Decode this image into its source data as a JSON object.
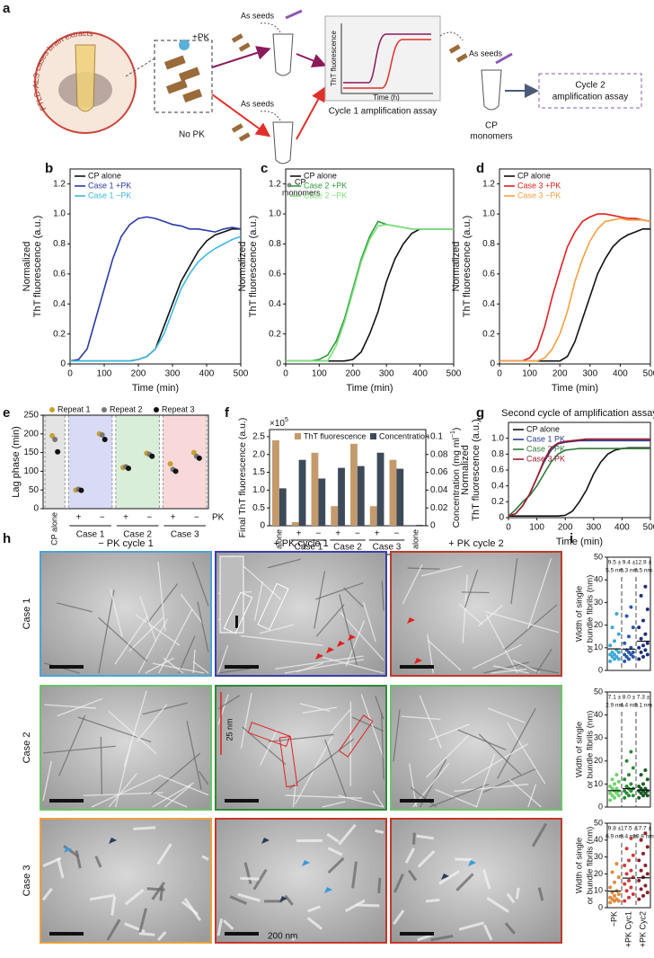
{
  "figure": {
    "panel_labels": [
      "a",
      "b",
      "c",
      "d",
      "e",
      "f",
      "g",
      "h",
      "i"
    ],
    "schematic": {
      "circle_label": "FTLD-ALS cases brain extracts",
      "plus_pk": "+PK",
      "no_pk": "No PK",
      "seeds": "As seeds",
      "cp": "CP",
      "monomers": "monomers",
      "assay_ylabel": "ThT fluorescence",
      "assay_xlabel": "Time (h)",
      "cycle1": "Cycle 1 amplification assay",
      "cycle2": [
        "Cycle 2",
        "amplification assay"
      ]
    },
    "micrographs": {
      "columns": [
        "− PK cycle 1",
        "+ PK cycle 1",
        "+ PK cycle 2"
      ],
      "rows": [
        "Case 1",
        "Case 2",
        "Case 3"
      ],
      "inset_scale": "25 nm",
      "scale": "200 nm"
    }
  },
  "chart_data": [
    {
      "type": "line",
      "xlabel": "Time (min)",
      "ylabel": [
        "Normalized",
        "ThT fluorescence (a.u.)"
      ],
      "legend": "upper left",
      "x": [
        0,
        25,
        50,
        75,
        100,
        125,
        150,
        175,
        200,
        225,
        250,
        275,
        300,
        325,
        350,
        375,
        400,
        425,
        450,
        475,
        500
      ],
      "xlim": [
        0,
        500
      ],
      "xticks": [
        0,
        100,
        200,
        300,
        400,
        500
      ],
      "ylim": [
        0,
        1.3
      ],
      "yticks": [
        0,
        0.2,
        0.4,
        0.6,
        0.8,
        {
          "value": 1,
          "label": "1.0"
        },
        1.2
      ],
      "series": [
        {
          "name": "CP alone",
          "color": "#111111",
          "values": [
            0.02,
            0.02,
            0.02,
            0.02,
            0.02,
            0.02,
            0.02,
            0.02,
            0.03,
            0.05,
            0.1,
            0.25,
            0.4,
            0.55,
            0.65,
            0.75,
            0.82,
            0.86,
            0.88,
            0.9,
            0.9
          ]
        },
        {
          "name": "Case 1 +PK",
          "color": "#2a3aa8",
          "values": [
            0.02,
            0.03,
            0.1,
            0.3,
            0.5,
            0.7,
            0.85,
            0.93,
            0.97,
            0.98,
            0.97,
            0.95,
            0.93,
            0.92,
            0.9,
            0.9,
            0.89,
            0.88,
            0.9,
            0.91,
            0.9
          ]
        },
        {
          "name": "Case 1 −PK",
          "color": "#3cb8e0",
          "values": [
            0.02,
            0.02,
            0.02,
            0.02,
            0.02,
            0.02,
            0.02,
            0.02,
            0.03,
            0.05,
            0.1,
            0.2,
            0.35,
            0.5,
            0.6,
            0.68,
            0.73,
            0.77,
            0.8,
            0.83,
            0.85
          ]
        }
      ]
    },
    {
      "type": "line",
      "xlabel": "Time (min)",
      "ylabel": [
        "Normalized",
        "ThT fluorescence (a.u.)"
      ],
      "legend": "upper left",
      "x": [
        0,
        25,
        50,
        75,
        100,
        125,
        150,
        175,
        200,
        225,
        250,
        275,
        300,
        325,
        350,
        375,
        400,
        425,
        450,
        475,
        500
      ],
      "xlim": [
        0,
        500
      ],
      "xticks": [
        0,
        100,
        200,
        300,
        400,
        500
      ],
      "ylim": [
        0,
        1.3
      ],
      "yticks": [
        0,
        0.2,
        0.4,
        0.6,
        0.8,
        {
          "value": 1,
          "label": "1.0"
        },
        1.2
      ],
      "series": [
        {
          "name": "CP alone",
          "color": "#111111",
          "values": [
            0.02,
            0.02,
            0.02,
            0.02,
            0.02,
            0.02,
            0.02,
            0.02,
            0.03,
            0.08,
            0.2,
            0.35,
            0.55,
            0.7,
            0.8,
            0.87,
            0.9,
            0.9,
            0.9,
            0.9,
            0.9
          ]
        },
        {
          "name": "Case 2 +PK",
          "color": "#2e9e3a",
          "values": [
            0.02,
            0.02,
            0.02,
            0.02,
            0.03,
            0.06,
            0.15,
            0.3,
            0.5,
            0.7,
            0.85,
            0.95,
            0.93,
            0.92,
            0.91,
            0.9,
            0.9,
            0.9,
            0.9,
            0.9,
            0.9
          ]
        },
        {
          "name": "Case 2 −PK",
          "color": "#7be07a",
          "values": [
            0.02,
            0.02,
            0.02,
            0.02,
            0.02,
            0.02,
            0.12,
            0.28,
            0.48,
            0.68,
            0.83,
            0.92,
            0.93,
            0.92,
            0.91,
            0.9,
            0.9,
            0.9,
            0.9,
            0.9,
            0.9
          ]
        }
      ]
    },
    {
      "type": "line",
      "xlabel": "Time (min)",
      "ylabel": [
        "Normalized",
        "ThT fluorescence (a.u.)"
      ],
      "legend": "upper left",
      "x": [
        0,
        25,
        50,
        75,
        100,
        125,
        150,
        175,
        200,
        225,
        250,
        275,
        300,
        325,
        350,
        375,
        400,
        425,
        450,
        475,
        500
      ],
      "xlim": [
        0,
        500
      ],
      "xticks": [
        0,
        100,
        200,
        300,
        400,
        500
      ],
      "ylim": [
        0,
        1.3
      ],
      "yticks": [
        0,
        0.2,
        0.4,
        0.6,
        0.8,
        {
          "value": 1,
          "label": "1.0"
        },
        1.2
      ],
      "series": [
        {
          "name": "CP alone",
          "color": "#111111",
          "values": [
            0.02,
            0.02,
            0.02,
            0.02,
            0.02,
            0.02,
            0.02,
            0.02,
            0.02,
            0.05,
            0.15,
            0.3,
            0.45,
            0.6,
            0.7,
            0.78,
            0.83,
            0.86,
            0.88,
            0.9,
            0.9
          ]
        },
        {
          "name": "Case 3 +PK",
          "color": "#e02020",
          "values": [
            0.02,
            0.02,
            0.02,
            0.02,
            0.04,
            0.1,
            0.25,
            0.45,
            0.62,
            0.78,
            0.88,
            0.95,
            0.98,
            1.0,
            1.0,
            0.99,
            0.98,
            0.97,
            0.97,
            0.96,
            0.95
          ]
        },
        {
          "name": "Case 3 −PK",
          "color": "#f5a040",
          "values": [
            0.02,
            0.02,
            0.02,
            0.02,
            0.02,
            0.02,
            0.04,
            0.1,
            0.2,
            0.35,
            0.55,
            0.7,
            0.82,
            0.9,
            0.95,
            0.96,
            0.97,
            0.96,
            0.96,
            0.96,
            0.95
          ]
        }
      ]
    },
    {
      "type": "dot",
      "ylabel": "Lag phase (min)",
      "legend": "top",
      "categories": [
        "CP alone",
        "+",
        "−",
        "+",
        "−",
        "+",
        "−"
      ],
      "group_labels": [
        "Case 1",
        "Case 2",
        "Case 3"
      ],
      "group_axis_label": "PK",
      "band_colors": [
        "#e4e4e4",
        "#d8daf6",
        "#d8eed8",
        "#f8d8d8"
      ],
      "ylim": [
        0,
        250
      ],
      "yticks": [
        0,
        50,
        100,
        150,
        200,
        250
      ],
      "series": [
        {
          "name": "Repeat 1",
          "color": "#c8a032",
          "values": [
            195,
            50,
            200,
            110,
            148,
            120,
            150
          ]
        },
        {
          "name": "Repeat 2",
          "color": "#777777",
          "values": [
            185,
            52,
            197,
            112,
            145,
            105,
            140
          ]
        },
        {
          "name": "Repeat 3",
          "color": "#111111",
          "values": [
            152,
            49,
            185,
            108,
            140,
            100,
            135
          ]
        }
      ]
    },
    {
      "type": "bar_dual",
      "ylabel": "Final ThT fluorescence (a.u.)",
      "y_multiplier": "×10",
      "y_multiplier_exp": "5",
      "y2label": "Concentration (mg ml",
      "y2label_exp": "−1",
      "y2label_end": ")",
      "legend": "top",
      "categories": [
        "CP alone",
        "+",
        "−",
        "+",
        "−",
        "+",
        "−",
        "ThT alone"
      ],
      "group_labels": [
        "Case 1",
        "Case 2",
        "Case 3"
      ],
      "group_axis_label": "PK",
      "ylim": [
        0,
        2.7
      ],
      "yticks": [
        0,
        0.5,
        {
          "value": 1,
          "label": "1.0"
        },
        1.5,
        {
          "value": 2,
          "label": "2.0"
        },
        2.5
      ],
      "y2lim": [
        0,
        0.108
      ],
      "y2ticks": [
        0,
        0.02,
        0.04,
        0.06,
        0.08,
        0.1
      ],
      "series": [
        {
          "name": "ThT fluorescence",
          "color": "#c49a6c",
          "values": [
            2.4,
            0.1,
            2.05,
            0.55,
            2.3,
            0.55,
            1.85,
            null
          ]
        },
        {
          "name": "Concentration",
          "color": "#3d4a5a",
          "axis": "y2",
          "values": [
            0.042,
            0.074,
            0.053,
            0.065,
            0.067,
            0.082,
            0.064,
            0.001
          ]
        }
      ]
    },
    {
      "type": "line",
      "title": "Second cycle of amplification assay",
      "xlabel": "Time (min)",
      "ylabel": [
        "Normalized",
        "ThT fluorescence (a.u.)"
      ],
      "legend": "upper left",
      "x": [
        0,
        25,
        50,
        75,
        100,
        125,
        150,
        175,
        200,
        225,
        250,
        275,
        300,
        325,
        350,
        375,
        400,
        425,
        450,
        475,
        500
      ],
      "xlim": [
        0,
        500
      ],
      "xticks": [
        0,
        100,
        200,
        300,
        400,
        500
      ],
      "ylim": [
        0,
        1.2
      ],
      "yticks": [
        0,
        0.2,
        0.4,
        0.6,
        0.8,
        {
          "value": 1,
          "label": "1.0"
        }
      ],
      "series": [
        {
          "name": "CP alone",
          "color": "#111111",
          "values": [
            0.02,
            0.02,
            0.02,
            0.02,
            0.02,
            0.02,
            0.02,
            0.02,
            0.03,
            0.08,
            0.2,
            0.35,
            0.55,
            0.7,
            0.8,
            0.85,
            0.87,
            0.88,
            0.88,
            0.88,
            0.88
          ]
        },
        {
          "name": "Case 1 PK",
          "color": "#2a3a8a",
          "values": [
            0.02,
            0.05,
            0.15,
            0.3,
            0.5,
            0.7,
            0.85,
            0.93,
            0.95,
            0.96,
            0.97,
            0.97,
            0.97,
            0.97,
            0.97,
            0.97,
            0.97,
            0.97,
            0.97,
            0.97,
            0.97
          ]
        },
        {
          "name": "Case 2 PK",
          "color": "#2e7a3a",
          "values": [
            0.02,
            0.1,
            0.2,
            0.28,
            0.4,
            0.55,
            0.7,
            0.8,
            0.85,
            0.86,
            0.87,
            0.87,
            0.87,
            0.87,
            0.87,
            0.87,
            0.87,
            0.87,
            0.87,
            0.87,
            0.87
          ]
        },
        {
          "name": "Case 3 PK",
          "color": "#a01a2a",
          "values": [
            0.02,
            0.05,
            0.15,
            0.3,
            0.5,
            0.72,
            0.88,
            0.94,
            0.96,
            0.97,
            0.98,
            0.99,
            0.99,
            0.99,
            0.99,
            0.99,
            0.99,
            0.99,
            0.99,
            0.99,
            0.99
          ]
        }
      ]
    },
    {
      "type": "strip",
      "ylabel": [
        "Width of single",
        "or bundle fibrils (nm)"
      ],
      "categories": [
        null,
        null,
        null
      ],
      "ylim": [
        0,
        50
      ],
      "yticks": [
        0,
        10,
        20,
        30,
        40,
        50
      ],
      "groups": [
        {
          "color": "#3fa9d6",
          "mean": 9.5,
          "annotation": [
            "9.5 ±",
            "5.5 nm"
          ],
          "values": [
            4,
            5,
            5,
            6,
            6,
            7,
            7,
            8,
            8,
            9,
            11,
            13,
            16,
            19,
            25
          ]
        },
        {
          "color": "#2b59a8",
          "mean": 9.4,
          "annotation": [
            "9.4 ±",
            "6.3 nm"
          ],
          "values": [
            4,
            5,
            6,
            6,
            7,
            7,
            8,
            8,
            9,
            10,
            12,
            15,
            19,
            24,
            28
          ]
        },
        {
          "color": "#1f2f7a",
          "mean": 12.9,
          "annotation": [
            "12.9 ±",
            "8.5 nm"
          ],
          "values": [
            5,
            6,
            7,
            8,
            9,
            10,
            11,
            12,
            14,
            16,
            19,
            22,
            27,
            33,
            37
          ]
        }
      ]
    },
    {
      "type": "strip",
      "ylabel": [
        "Width of single",
        "or bundle fibrils (nm)"
      ],
      "categories": [
        null,
        null,
        null
      ],
      "ylim": [
        0,
        50
      ],
      "yticks": [
        0,
        10,
        20,
        30,
        40,
        50
      ],
      "groups": [
        {
          "color": "#6fd36a",
          "mean": 7.1,
          "annotation": [
            "7.1 ±",
            "2.9 nm"
          ],
          "values": [
            3,
            4,
            5,
            5,
            6,
            6,
            7,
            7,
            8,
            8,
            9,
            10,
            11,
            12,
            14
          ]
        },
        {
          "color": "#2d8a3a",
          "mean": 8.0,
          "annotation": [
            "8.0 ±",
            "4.4 nm"
          ],
          "values": [
            4,
            5,
            5,
            6,
            7,
            7,
            8,
            8,
            9,
            10,
            12,
            14,
            17,
            20,
            24
          ]
        },
        {
          "color": "#1d5a28",
          "mean": 7.3,
          "annotation": [
            "7.3 ±",
            "3.1 nm"
          ],
          "values": [
            4,
            5,
            5,
            6,
            6,
            7,
            7,
            7,
            8,
            8,
            9,
            10,
            12,
            14,
            16
          ]
        }
      ]
    },
    {
      "type": "strip",
      "ylabel": [
        "Width of single",
        "or bundle fibrils (nm)"
      ],
      "categories": [
        "−PK",
        "+PK Cyc1",
        "+PK Cyc2"
      ],
      "ylim": [
        0,
        50
      ],
      "yticks": [
        0,
        10,
        20,
        30,
        40,
        50
      ],
      "groups": [
        {
          "color": "#e08a3c",
          "mean": 9.8,
          "annotation": [
            "9.8 ±",
            "6.9 nm"
          ],
          "values": [
            3,
            4,
            4,
            5,
            5,
            6,
            7,
            8,
            9,
            10,
            12,
            15,
            18,
            21,
            26
          ]
        },
        {
          "color": "#d23a3a",
          "mean": 17.5,
          "annotation": [
            "17.5 ±",
            "8.4 nm"
          ],
          "values": [
            4,
            6,
            8,
            10,
            12,
            14,
            16,
            18,
            20,
            22,
            25,
            28,
            31,
            35,
            41
          ]
        },
        {
          "color": "#8a1f2a",
          "mean": 17.7,
          "annotation": [
            "17.7 ±",
            "10.8 nm"
          ],
          "values": [
            5,
            7,
            9,
            11,
            13,
            16,
            18,
            20,
            22,
            25,
            28,
            32,
            36,
            40,
            44
          ]
        }
      ]
    }
  ]
}
